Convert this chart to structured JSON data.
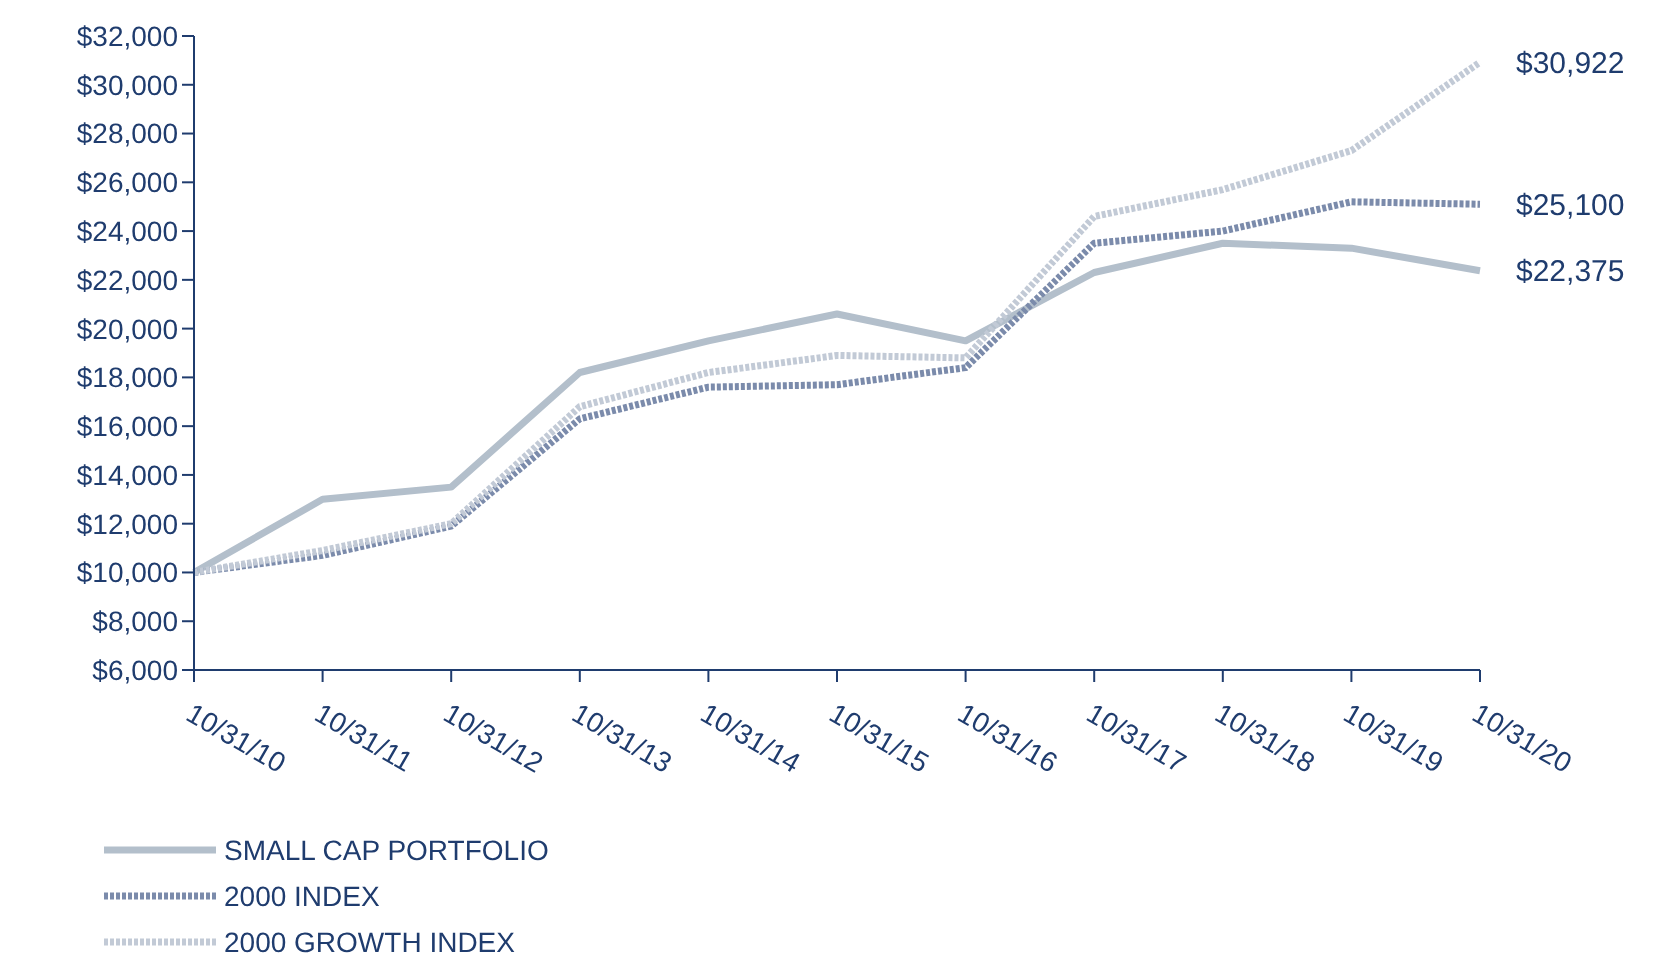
{
  "chart_data": {
    "type": "line",
    "categories": [
      "10/31/10",
      "10/31/11",
      "10/31/12",
      "10/31/13",
      "10/31/14",
      "10/31/15",
      "10/31/16",
      "10/31/17",
      "10/31/18",
      "10/31/19",
      "10/31/20"
    ],
    "series": [
      {
        "name": "SMALL CAP PORTFOLIO",
        "color": "#b3bfcb",
        "line_style": "solid",
        "values": [
          10000,
          13000,
          13500,
          18200,
          19500,
          20600,
          19500,
          22300,
          23500,
          23300,
          22375
        ]
      },
      {
        "name": "2000 INDEX",
        "color": "#7b8bab",
        "line_style": "dotted",
        "values": [
          10000,
          10700,
          11900,
          16300,
          17600,
          17700,
          18400,
          23500,
          24000,
          25200,
          25100
        ]
      },
      {
        "name": "2000 GROWTH INDEX",
        "color": "#c2cad6",
        "line_style": "dotted",
        "values": [
          10000,
          10900,
          12000,
          16800,
          18200,
          18900,
          18800,
          24600,
          25700,
          27300,
          30922
        ]
      }
    ],
    "ylim": [
      6000,
      32000
    ],
    "yticks": [
      {
        "value": 6000,
        "label": "$6,000"
      },
      {
        "value": 8000,
        "label": "$8,000"
      },
      {
        "value": 10000,
        "label": "$10,000"
      },
      {
        "value": 12000,
        "label": "$12,000"
      },
      {
        "value": 14000,
        "label": "$14,000"
      },
      {
        "value": 16000,
        "label": "$16,000"
      },
      {
        "value": 18000,
        "label": "$18,000"
      },
      {
        "value": 20000,
        "label": "$20,000"
      },
      {
        "value": 22000,
        "label": "$22,000"
      },
      {
        "value": 24000,
        "label": "$24,000"
      },
      {
        "value": 26000,
        "label": "$26,000"
      },
      {
        "value": 28000,
        "label": "$28,000"
      },
      {
        "value": 30000,
        "label": "$30,000"
      },
      {
        "value": 32000,
        "label": "$32,000"
      }
    ],
    "annotations": [
      {
        "text": "$30,922",
        "x": "10/31/20",
        "y": 30922
      },
      {
        "text": "$25,100",
        "x": "10/31/20",
        "y": 25100
      },
      {
        "text": "$22,375",
        "x": "10/31/20",
        "y": 22375
      }
    ],
    "grid": false,
    "legend": "bottom left",
    "marker": "none"
  }
}
